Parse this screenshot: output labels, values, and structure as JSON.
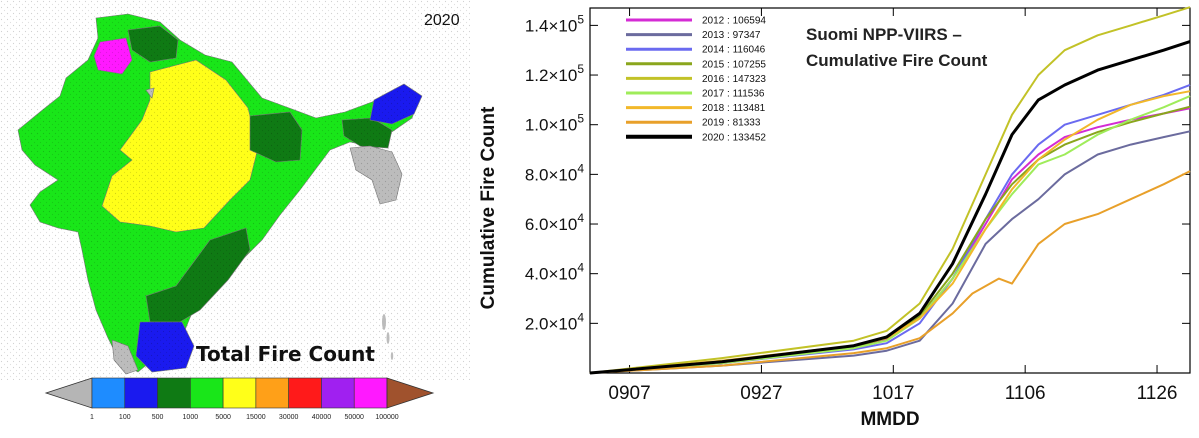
{
  "map": {
    "year": "2020",
    "title": "Total Fire Count",
    "colorbar": {
      "ticks": [
        "1",
        "100",
        "500",
        "1000",
        "5000",
        "15000",
        "30000",
        "40000",
        "50000",
        "100000"
      ],
      "colors": [
        "#b5b5b5",
        "#1e8cff",
        "#1a1aef",
        "#0f7a14",
        "#19e619",
        "#ffff19",
        "#ffa018",
        "#ff1a1a",
        "#a020f0",
        "#ff19ff",
        "#a0522d"
      ]
    }
  },
  "chart_data": {
    "type": "line",
    "title": "Suomi NPP-VIIRS – Cumulative Fire Count",
    "title_lines": [
      "Suomi NPP-VIIRS –",
      "Cumulative Fire Count"
    ],
    "xlabel": "MMDD",
    "ylabel": "Cumulative Fire Count",
    "x_ticks": [
      "0907",
      "0927",
      "1017",
      "1106",
      "1126"
    ],
    "x_tick_days": [
      6,
      26,
      46,
      66,
      86
    ],
    "x_range_days": [
      0,
      91
    ],
    "ylim": [
      0,
      147000
    ],
    "y_ticks": [
      {
        "value": 20000,
        "mantissa": "2.0",
        "exp": "4"
      },
      {
        "value": 40000,
        "mantissa": "4.0",
        "exp": "4"
      },
      {
        "value": 60000,
        "mantissa": "6.0",
        "exp": "4"
      },
      {
        "value": 80000,
        "mantissa": "8.0",
        "exp": "4"
      },
      {
        "value": 100000,
        "mantissa": "1.0",
        "exp": "5"
      },
      {
        "value": 120000,
        "mantissa": "1.2",
        "exp": "5"
      },
      {
        "value": 140000,
        "mantissa": "1.4",
        "exp": "5"
      }
    ],
    "legend_position": "top-left",
    "series": [
      {
        "name": "2012 : 106594",
        "color": "#d42bd4",
        "width": 2,
        "x": [
          0,
          20,
          40,
          45,
          50,
          55,
          60,
          64,
          68,
          72,
          77,
          82,
          87,
          91
        ],
        "y": [
          0,
          4000,
          10000,
          13500,
          22000,
          38000,
          60000,
          78000,
          88000,
          95000,
          99000,
          102000,
          104500,
          106594
        ]
      },
      {
        "name": "2013 :  97347",
        "color": "#6b6b9e",
        "width": 2,
        "x": [
          0,
          20,
          40,
          45,
          50,
          55,
          60,
          64,
          68,
          72,
          77,
          82,
          87,
          91
        ],
        "y": [
          0,
          3000,
          7000,
          9000,
          13000,
          28000,
          52000,
          62000,
          70000,
          80000,
          88000,
          92000,
          95000,
          97347
        ]
      },
      {
        "name": "2014 : 116046",
        "color": "#6a6af0",
        "width": 2,
        "x": [
          0,
          20,
          40,
          45,
          50,
          55,
          60,
          64,
          68,
          72,
          77,
          82,
          87,
          91
        ],
        "y": [
          0,
          4000,
          9500,
          12000,
          20000,
          38000,
          62000,
          80000,
          92000,
          100000,
          104000,
          108000,
          112000,
          116046
        ]
      },
      {
        "name": "2015 : 107255",
        "color": "#8aa61c",
        "width": 2,
        "x": [
          0,
          20,
          40,
          45,
          50,
          55,
          60,
          64,
          68,
          72,
          77,
          82,
          87,
          91
        ],
        "y": [
          0,
          4500,
          10500,
          14000,
          23000,
          40000,
          62000,
          76000,
          86000,
          92000,
          97000,
          101000,
          104500,
          107255
        ]
      },
      {
        "name": "2016 : 147323",
        "color": "#c2c227",
        "width": 2,
        "x": [
          0,
          20,
          40,
          45,
          50,
          55,
          60,
          64,
          68,
          72,
          77,
          82,
          87,
          91
        ],
        "y": [
          0,
          6000,
          13000,
          17000,
          28000,
          50000,
          80000,
          104000,
          120000,
          130000,
          136000,
          140000,
          144000,
          147323
        ]
      },
      {
        "name": "2017 : 111536",
        "color": "#9fec5a",
        "width": 2,
        "x": [
          0,
          20,
          40,
          45,
          50,
          55,
          60,
          64,
          68,
          72,
          77,
          82,
          87,
          91
        ],
        "y": [
          0,
          4000,
          10000,
          13000,
          22000,
          38000,
          58000,
          72000,
          84000,
          88000,
          96000,
          102000,
          107000,
          111536
        ]
      },
      {
        "name": "2018 : 113481",
        "color": "#f2b82a",
        "width": 2,
        "x": [
          0,
          20,
          40,
          45,
          50,
          55,
          60,
          64,
          68,
          72,
          77,
          82,
          87,
          91
        ],
        "y": [
          0,
          5000,
          11000,
          14000,
          22000,
          36000,
          58000,
          74000,
          86000,
          94000,
          102000,
          108000,
          111500,
          113481
        ]
      },
      {
        "name": "2019 :  81333",
        "color": "#e8a02a",
        "width": 2,
        "x": [
          0,
          20,
          40,
          45,
          50,
          55,
          58,
          62,
          64,
          68,
          72,
          77,
          82,
          87,
          91
        ],
        "y": [
          0,
          3000,
          8000,
          10000,
          14000,
          24000,
          32000,
          38000,
          36000,
          52000,
          60000,
          64000,
          70000,
          76000,
          81333
        ]
      },
      {
        "name": "2020 : 133452",
        "color": "#000000",
        "width": 3,
        "x": [
          0,
          20,
          40,
          45,
          50,
          55,
          60,
          64,
          68,
          72,
          77,
          82,
          87,
          91
        ],
        "y": [
          0,
          4500,
          11000,
          14500,
          24000,
          44000,
          72000,
          96000,
          110000,
          116000,
          122000,
          126000,
          130000,
          133452
        ]
      }
    ]
  }
}
